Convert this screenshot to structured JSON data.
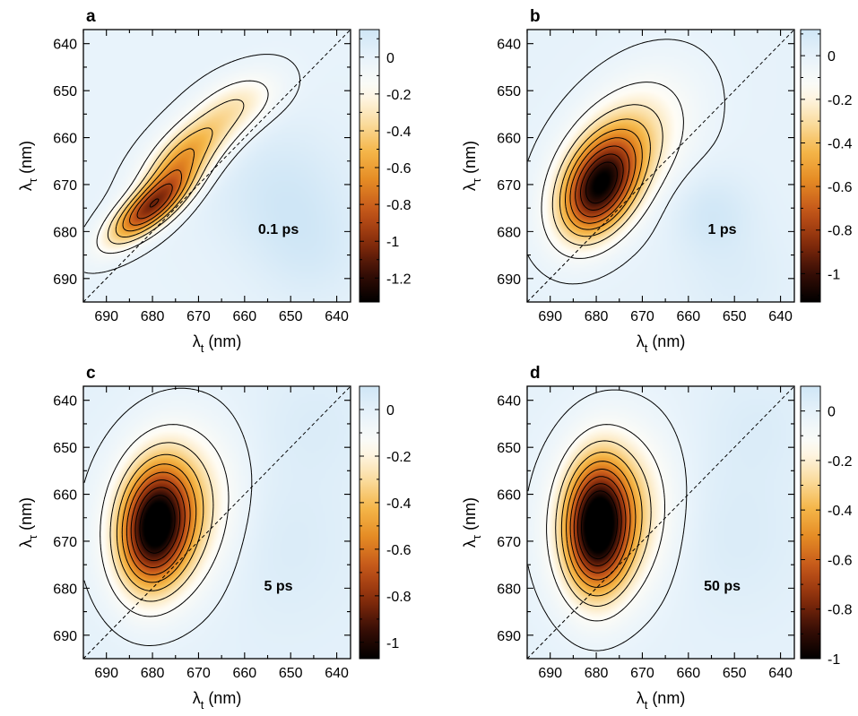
{
  "colors": {
    "colormap": [
      "#000000",
      "#3a0f06",
      "#8a2e0c",
      "#c4561a",
      "#e58a24",
      "#f5b84a",
      "#fbe0a8",
      "#fffdf6",
      "#eaf4fb",
      "#cfe6f6"
    ],
    "contour": "#000000",
    "diagonal": "#000000"
  },
  "chart_data": [
    {
      "type": "heatmap",
      "panel_label": "a",
      "annotation": "0.1 ps",
      "xlabel": {
        "symbol": "λ",
        "sub": "t",
        "unit": " (nm)"
      },
      "ylabel": {
        "symbol": "λ",
        "sub": "τ",
        "unit": " (nm)"
      },
      "xlim": [
        695,
        637
      ],
      "ylim": [
        637,
        695
      ],
      "xticks": [
        690,
        680,
        670,
        660,
        650,
        640
      ],
      "yticks": [
        640,
        650,
        660,
        670,
        680,
        690
      ],
      "diagonal": true,
      "colorbar": {
        "min": -1.33,
        "max": 0.15,
        "ticks": [
          0,
          -0.2,
          -0.4,
          -0.6,
          -0.8,
          -1,
          -1.2
        ]
      },
      "peak": {
        "x": 680,
        "y": 674,
        "value": -1.3
      },
      "negative_blobs": [
        {
          "x": 680.5,
          "y": 675,
          "sx": 6,
          "sy": 5,
          "rho": 0.75,
          "amp": -0.95
        },
        {
          "x": 669,
          "y": 660,
          "sx": 8,
          "sy": 7,
          "rho": 0.7,
          "amp": -0.38
        },
        {
          "x": 675,
          "y": 666,
          "sx": 5,
          "sy": 5,
          "rho": 0.65,
          "amp": -0.3
        },
        {
          "x": 660,
          "y": 652,
          "sx": 6,
          "sy": 4,
          "rho": 0.3,
          "amp": -0.12
        }
      ],
      "positive_blobs": [
        {
          "x": 652,
          "y": 672,
          "sx": 10,
          "sy": 10,
          "rho": 0,
          "amp": 0.13
        },
        {
          "x": 645,
          "y": 685,
          "sx": 8,
          "sy": 8,
          "rho": 0,
          "amp": 0.08
        }
      ],
      "contour_levels": [
        -0.02,
        -0.15,
        -0.3,
        -0.45,
        -0.6,
        -0.75,
        -0.9,
        -1.05,
        -1.2
      ]
    },
    {
      "type": "heatmap",
      "panel_label": "b",
      "annotation": "1 ps",
      "xlabel": {
        "symbol": "λ",
        "sub": "t",
        "unit": " (nm)"
      },
      "ylabel": {
        "symbol": "λ",
        "sub": "τ",
        "unit": " (nm)"
      },
      "xlim": [
        695,
        637
      ],
      "ylim": [
        637,
        695
      ],
      "xticks": [
        690,
        680,
        670,
        660,
        650,
        640
      ],
      "yticks": [
        640,
        650,
        660,
        670,
        680,
        690
      ],
      "diagonal": true,
      "colorbar": {
        "min": -1.13,
        "max": 0.12,
        "ticks": [
          0,
          -0.2,
          -0.4,
          -0.6,
          -0.8,
          -1
        ]
      },
      "peak": {
        "x": 680,
        "y": 673,
        "value": -1.1
      },
      "negative_blobs": [
        {
          "x": 679.5,
          "y": 671,
          "sx": 5.5,
          "sy": 7,
          "rho": 0.35,
          "amp": -0.85
        },
        {
          "x": 676,
          "y": 664,
          "sx": 8,
          "sy": 9,
          "rho": 0.45,
          "amp": -0.3
        },
        {
          "x": 672,
          "y": 662,
          "sx": 10,
          "sy": 11,
          "rho": 0.4,
          "amp": -0.12
        }
      ],
      "positive_blobs": [
        {
          "x": 655,
          "y": 676,
          "sx": 6,
          "sy": 6,
          "rho": 0,
          "amp": 0.1
        },
        {
          "x": 650,
          "y": 690,
          "sx": 8,
          "sy": 8,
          "rho": 0,
          "amp": 0.05
        }
      ],
      "contour_levels": [
        -0.02,
        -0.12,
        -0.25,
        -0.38,
        -0.5,
        -0.62,
        -0.75,
        -0.88,
        -1.0
      ]
    },
    {
      "type": "heatmap",
      "panel_label": "c",
      "annotation": "5 ps",
      "xlabel": {
        "symbol": "λ",
        "sub": "t",
        "unit": " (nm)"
      },
      "ylabel": {
        "symbol": "λ",
        "sub": "τ",
        "unit": " (nm)"
      },
      "xlim": [
        695,
        637
      ],
      "ylim": [
        637,
        695
      ],
      "xticks": [
        690,
        680,
        670,
        660,
        650,
        640
      ],
      "yticks": [
        640,
        650,
        660,
        670,
        680,
        690
      ],
      "diagonal": true,
      "colorbar": {
        "min": -1.07,
        "max": 0.1,
        "ticks": [
          0,
          -0.2,
          -0.4,
          -0.6,
          -0.8,
          -1
        ]
      },
      "peak": {
        "x": 680,
        "y": 668,
        "value": -1.05
      },
      "negative_blobs": [
        {
          "x": 679.5,
          "y": 667,
          "sx": 5,
          "sy": 8.5,
          "rho": 0.15,
          "amp": -0.85
        },
        {
          "x": 676,
          "y": 664,
          "sx": 8,
          "sy": 11,
          "rho": 0.15,
          "amp": -0.3
        },
        {
          "x": 675,
          "y": 664,
          "sx": 11,
          "sy": 13,
          "rho": 0.1,
          "amp": -0.1
        }
      ],
      "positive_blobs": [
        {
          "x": 652,
          "y": 670,
          "sx": 10,
          "sy": 12,
          "rho": 0,
          "amp": 0.05
        },
        {
          "x": 645,
          "y": 645,
          "sx": 8,
          "sy": 8,
          "rho": 0,
          "amp": 0.04
        }
      ],
      "contour_levels": [
        -0.03,
        -0.13,
        -0.25,
        -0.37,
        -0.49,
        -0.61,
        -0.73,
        -0.85,
        -0.97
      ]
    },
    {
      "type": "heatmap",
      "panel_label": "d",
      "annotation": "50 ps",
      "xlabel": {
        "symbol": "λ",
        "sub": "t",
        "unit": " (nm)"
      },
      "ylabel": {
        "symbol": "λ",
        "sub": "τ",
        "unit": " (nm)"
      },
      "xlim": [
        695,
        637
      ],
      "ylim": [
        637,
        695
      ],
      "xticks": [
        690,
        680,
        670,
        660,
        650,
        640
      ],
      "yticks": [
        640,
        650,
        660,
        670,
        680,
        690
      ],
      "diagonal": true,
      "colorbar": {
        "min": -1.0,
        "max": 0.1,
        "ticks": [
          0,
          -0.2,
          -0.4,
          -0.6,
          -0.8,
          -1
        ]
      },
      "peak": {
        "x": 680,
        "y": 667,
        "value": -1.0
      },
      "negative_blobs": [
        {
          "x": 679.8,
          "y": 667,
          "sx": 4.5,
          "sy": 9,
          "rho": 0.05,
          "amp": -0.82
        },
        {
          "x": 677,
          "y": 665,
          "sx": 7.5,
          "sy": 11,
          "rho": 0.1,
          "amp": -0.3
        },
        {
          "x": 676,
          "y": 664,
          "sx": 10,
          "sy": 13,
          "rho": 0.1,
          "amp": -0.1
        }
      ],
      "positive_blobs": [
        {
          "x": 650,
          "y": 668,
          "sx": 10,
          "sy": 12,
          "rho": 0,
          "amp": 0.05
        },
        {
          "x": 645,
          "y": 645,
          "sx": 8,
          "sy": 8,
          "rho": 0,
          "amp": 0.04
        }
      ],
      "contour_levels": [
        -0.03,
        -0.13,
        -0.24,
        -0.35,
        -0.46,
        -0.57,
        -0.68,
        -0.79,
        -0.9
      ]
    }
  ]
}
